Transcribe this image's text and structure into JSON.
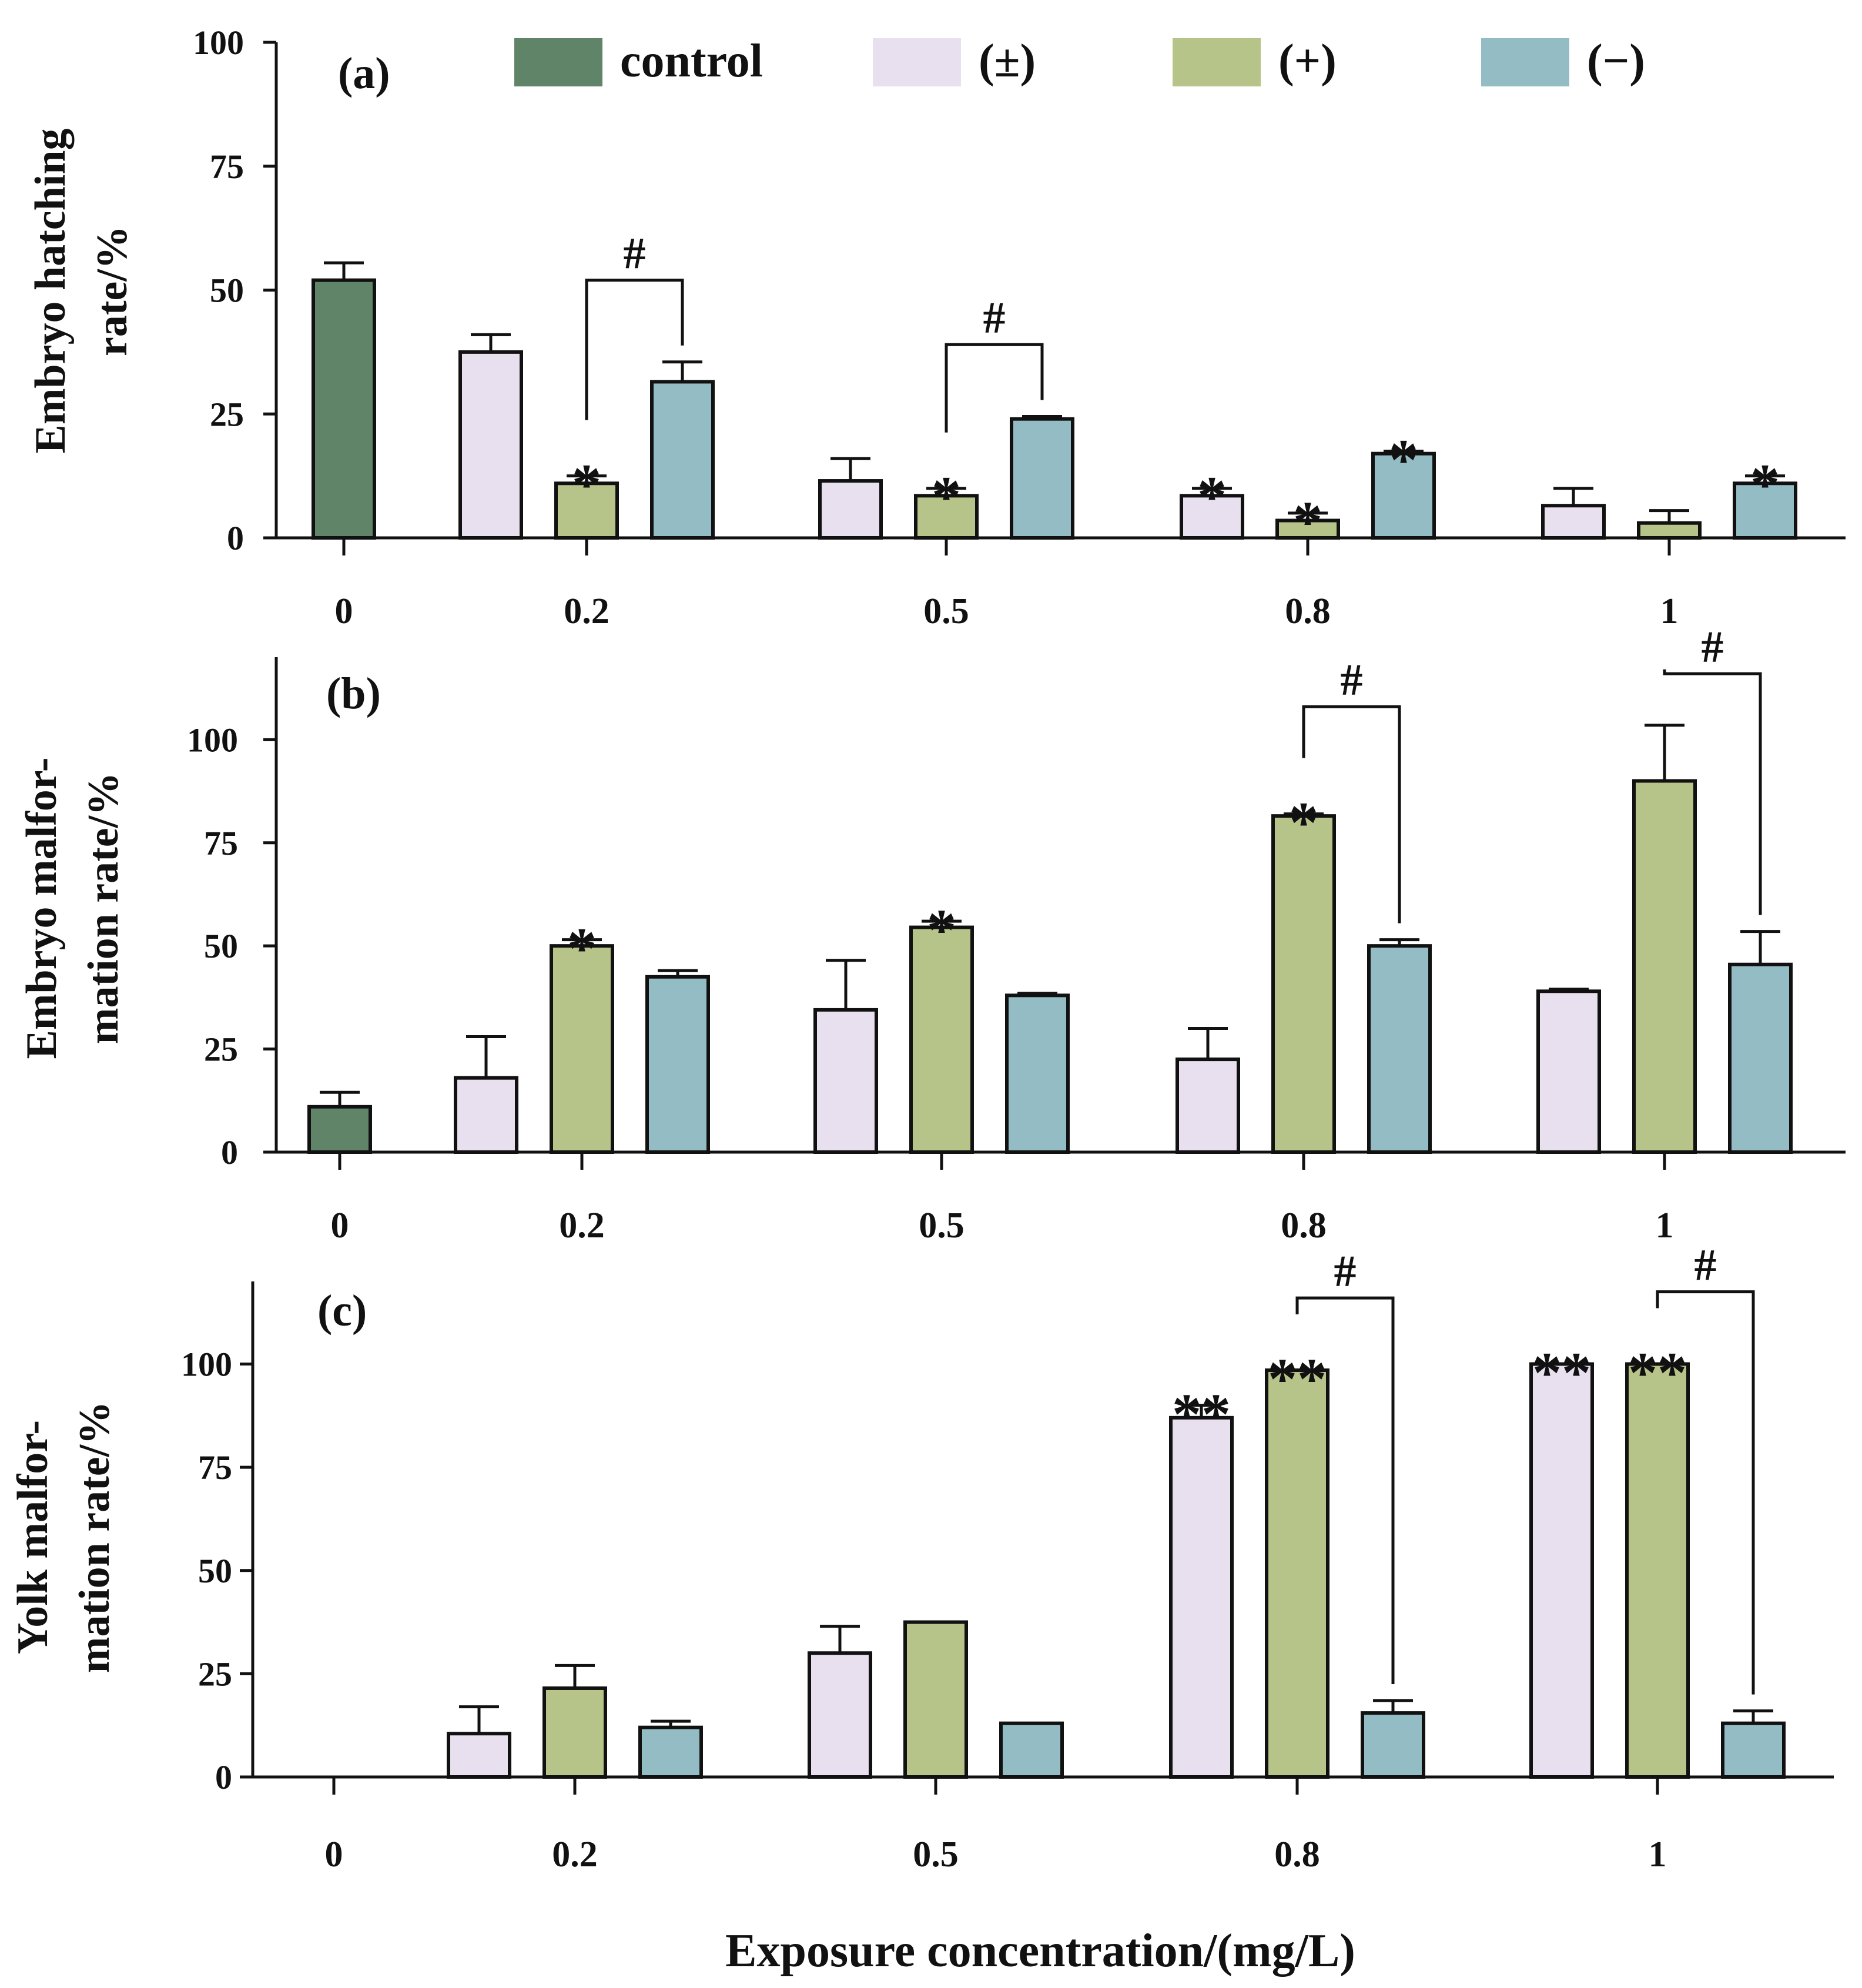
{
  "chart_data": {
    "type": "bar",
    "xlabel": "Exposure  concentration/(mg/L)",
    "categories": [
      "0",
      "0.2",
      "0.5",
      "0.8",
      "1"
    ],
    "legend": [
      {
        "name": "control",
        "color": "#5f8468"
      },
      {
        "name": "(±)",
        "color": "#e8e0ee"
      },
      {
        "name": "(+)",
        "color": "#b6c48a"
      },
      {
        "name": "(−)",
        "color": "#94bcc4"
      }
    ],
    "panels": [
      {
        "label": "(a)",
        "ylabel": [
          "Embryo hatching",
          "rate/%"
        ],
        "ylim": [
          0,
          100
        ],
        "yticks": [
          0,
          25,
          50,
          75,
          100
        ],
        "control": {
          "value": 52,
          "err": 3.5
        },
        "series": [
          {
            "name": "(±)",
            "values": [
              37.5,
              11.5,
              8.5,
              6.5
            ],
            "err": [
              3.5,
              4.5,
              1.5,
              3.5
            ],
            "sig": [
              "",
              "",
              "*",
              ""
            ]
          },
          {
            "name": "(+)",
            "values": [
              11,
              8.5,
              3.5,
              3
            ],
            "err": [
              1.5,
              1.5,
              1.5,
              2.5
            ],
            "sig": [
              "*",
              "*",
              "*",
              ""
            ]
          },
          {
            "name": "(−)",
            "values": [
              31.5,
              24,
              17,
              11
            ],
            "err": [
              4,
              0.5,
              0.5,
              1.5
            ],
            "sig": [
              "",
              "",
              "*",
              "*"
            ]
          }
        ],
        "brackets": [
          {
            "category": 1,
            "from": "(+)",
            "to": "(−)",
            "level": 52,
            "symbol": "#"
          },
          {
            "category": 2,
            "from": "(+)",
            "to": "(−)",
            "level": 39,
            "symbol": "#"
          }
        ]
      },
      {
        "label": "(b)",
        "ylabel": [
          "Embryo malfor-",
          "mation rate/%"
        ],
        "ylim": [
          0,
          120
        ],
        "yticks": [
          0,
          25,
          50,
          75,
          100
        ],
        "control": {
          "value": 11,
          "err": 3.5
        },
        "series": [
          {
            "name": "(±)",
            "values": [
              18,
              34.5,
              22.5,
              39
            ],
            "err": [
              10,
              12,
              7.5,
              0.5
            ],
            "sig": [
              "",
              "",
              "",
              ""
            ]
          },
          {
            "name": "(+)",
            "values": [
              50,
              54.5,
              81.5,
              90
            ],
            "err": [
              1.5,
              1.5,
              0.5,
              13.5
            ],
            "sig": [
              "*",
              "*",
              "*",
              ""
            ]
          },
          {
            "name": "(−)",
            "values": [
              42.5,
              38,
              50,
              45.5
            ],
            "err": [
              1.5,
              0.5,
              1.5,
              8
            ],
            "sig": [
              "",
              "",
              "",
              ""
            ]
          }
        ],
        "brackets": [
          {
            "category": 3,
            "from": "(+)",
            "to": "(−)",
            "level": 108,
            "symbol": "#"
          },
          {
            "category": 4,
            "from": "(+)",
            "to": "(−)",
            "level": 116,
            "symbol": "#"
          }
        ]
      },
      {
        "label": "(c)",
        "ylabel": [
          "Yolk malfor-",
          "mation rate/%"
        ],
        "ylim": [
          0,
          120
        ],
        "yticks": [
          0,
          25,
          50,
          75,
          100
        ],
        "control": {
          "value": 0,
          "err": 0
        },
        "series": [
          {
            "name": "(±)",
            "values": [
              10.5,
              30,
              87,
              100
            ],
            "err": [
              6.5,
              6.5,
              3,
              0
            ],
            "sig": [
              "",
              "",
              "**",
              "**"
            ]
          },
          {
            "name": "(+)",
            "values": [
              21.5,
              37.5,
              98.5,
              100
            ],
            "err": [
              5.5,
              0,
              0,
              0
            ],
            "sig": [
              "",
              "",
              "**",
              "**"
            ]
          },
          {
            "name": "(−)",
            "values": [
              12,
              13,
              15.5,
              13
            ],
            "err": [
              1.5,
              0,
              3,
              3
            ],
            "sig": [
              "",
              "",
              "",
              ""
            ]
          }
        ],
        "brackets": [
          {
            "category": 3,
            "from": "(+)",
            "to": "(−)",
            "level": 116,
            "symbol": "#"
          },
          {
            "category": 4,
            "from": "(+)",
            "to": "(−)",
            "level": 117.5,
            "symbol": "#"
          }
        ]
      }
    ]
  }
}
